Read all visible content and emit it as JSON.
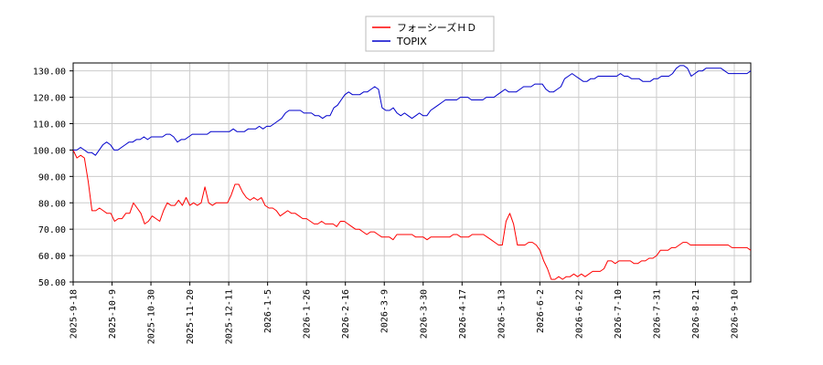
{
  "chart_data": {
    "type": "line",
    "title": "",
    "xlabel": "",
    "ylabel": "",
    "ylim": [
      50,
      133
    ],
    "grid": true,
    "legend_placement": "top-center",
    "x_ticks": [
      "2025-9-18",
      "2025-10-9",
      "2025-10-30",
      "2025-11-20",
      "2025-12-11",
      "2026-1-5",
      "2026-1-26",
      "2026-2-16",
      "2026-3-9",
      "2026-3-30",
      "2026-4-17",
      "2026-5-13",
      "2026-6-2",
      "2026-6-22",
      "2026-7-10",
      "2026-7-31",
      "2026-8-21",
      "2026-9-10"
    ],
    "y_ticks": [
      "50.00",
      "60.00",
      "70.00",
      "80.00",
      "90.00",
      "100.00",
      "110.00",
      "120.00",
      "130.00"
    ],
    "series": [
      {
        "name": "フォーシーズＨＤ",
        "color": "#ff0000",
        "values": [
          100,
          97,
          98,
          97,
          88,
          77,
          77,
          78,
          77,
          76,
          76,
          73,
          74,
          74,
          76,
          76,
          80,
          78,
          76,
          72,
          73,
          75,
          74,
          73,
          77,
          80,
          79,
          79,
          81,
          79,
          82,
          79,
          80,
          79,
          80,
          86,
          80,
          79,
          80,
          80,
          80,
          80,
          83,
          87,
          87,
          84,
          82,
          81,
          82,
          81,
          82,
          79,
          78,
          78,
          77,
          75,
          76,
          77,
          76,
          76,
          75,
          74,
          74,
          73,
          72,
          72,
          73,
          72,
          72,
          72,
          71,
          73,
          73,
          72,
          71,
          70,
          70,
          69,
          68,
          69,
          69,
          68,
          67,
          67,
          67,
          66,
          68,
          68,
          68,
          68,
          68,
          67,
          67,
          67,
          66,
          67,
          67,
          67,
          67,
          67,
          67,
          68,
          68,
          67,
          67,
          67,
          68,
          68,
          68,
          68,
          67,
          66,
          65,
          64,
          64,
          73,
          76,
          72,
          64,
          64,
          64,
          65,
          65,
          64,
          62,
          58,
          55,
          51,
          51,
          52,
          51,
          52,
          52,
          53,
          52,
          53,
          52,
          53,
          54,
          54,
          54,
          55,
          58,
          58,
          57,
          58,
          58,
          58,
          58,
          57,
          57,
          58,
          58,
          59,
          59,
          60,
          62,
          62,
          62,
          63,
          63,
          64,
          65,
          65,
          64,
          64,
          64,
          64,
          64,
          64,
          64,
          64,
          64,
          64,
          64,
          63,
          63,
          63,
          63,
          63,
          62
        ]
      },
      {
        "name": "TOPIX",
        "color": "#0000cc",
        "values": [
          100,
          100,
          101,
          100,
          99,
          99,
          98,
          100,
          102,
          103,
          102,
          100,
          100,
          101,
          102,
          103,
          103,
          104,
          104,
          105,
          104,
          105,
          105,
          105,
          105,
          106,
          106,
          105,
          103,
          104,
          104,
          105,
          106,
          106,
          106,
          106,
          106,
          107,
          107,
          107,
          107,
          107,
          107,
          108,
          107,
          107,
          107,
          108,
          108,
          108,
          109,
          108,
          109,
          109,
          110,
          111,
          112,
          114,
          115,
          115,
          115,
          115,
          114,
          114,
          114,
          113,
          113,
          112,
          113,
          113,
          116,
          117,
          119,
          121,
          122,
          121,
          121,
          121,
          122,
          122,
          123,
          124,
          123,
          116,
          115,
          115,
          116,
          114,
          113,
          114,
          113,
          112,
          113,
          114,
          113,
          113,
          115,
          116,
          117,
          118,
          119,
          119,
          119,
          119,
          120,
          120,
          120,
          119,
          119,
          119,
          119,
          120,
          120,
          120,
          121,
          122,
          123,
          122,
          122,
          122,
          123,
          124,
          124,
          124,
          125,
          125,
          125,
          123,
          122,
          122,
          123,
          124,
          127,
          128,
          129,
          128,
          127,
          126,
          126,
          127,
          127,
          128,
          128,
          128,
          128,
          128,
          128,
          129,
          128,
          128,
          127,
          127,
          127,
          126,
          126,
          126,
          127,
          127,
          128,
          128,
          128,
          129,
          131,
          132,
          132,
          131,
          128,
          129,
          130,
          130,
          131,
          131,
          131,
          131,
          131,
          130,
          129,
          129,
          129,
          129,
          129,
          129,
          130
        ]
      }
    ]
  }
}
